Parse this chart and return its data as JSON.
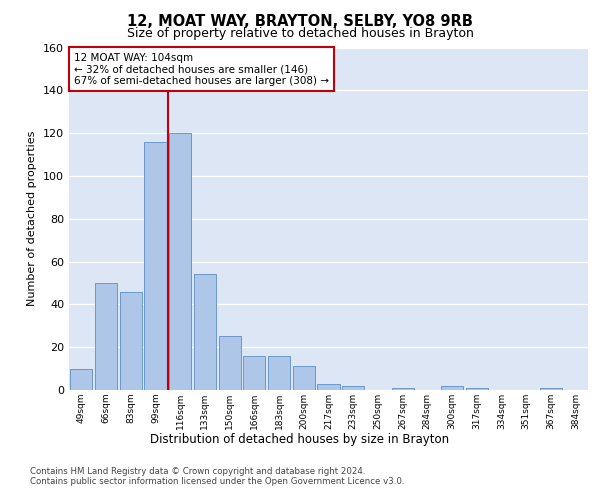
{
  "title1": "12, MOAT WAY, BRAYTON, SELBY, YO8 9RB",
  "title2": "Size of property relative to detached houses in Brayton",
  "xlabel": "Distribution of detached houses by size in Brayton",
  "ylabel": "Number of detached properties",
  "footer1": "Contains HM Land Registry data © Crown copyright and database right 2024.",
  "footer2": "Contains public sector information licensed under the Open Government Licence v3.0.",
  "annotation_line1": "12 MOAT WAY: 104sqm",
  "annotation_line2": "← 32% of detached houses are smaller (146)",
  "annotation_line3": "67% of semi-detached houses are larger (308) →",
  "property_size": 104,
  "categories": [
    "49sqm",
    "66sqm",
    "83sqm",
    "99sqm",
    "116sqm",
    "133sqm",
    "150sqm",
    "166sqm",
    "183sqm",
    "200sqm",
    "217sqm",
    "233sqm",
    "250sqm",
    "267sqm",
    "284sqm",
    "300sqm",
    "317sqm",
    "334sqm",
    "351sqm",
    "367sqm",
    "384sqm"
  ],
  "values": [
    10,
    50,
    46,
    116,
    120,
    54,
    25,
    16,
    16,
    11,
    3,
    2,
    0,
    1,
    0,
    2,
    1,
    0,
    0,
    1,
    0
  ],
  "bar_color": "#aec6e8",
  "bar_edge_color": "#5b8fc9",
  "highlight_color": "#c0000a",
  "plot_bg_color": "#dce6f5",
  "ylim": [
    0,
    160
  ],
  "yticks": [
    0,
    20,
    40,
    60,
    80,
    100,
    120,
    140,
    160
  ],
  "property_bin_index": 3,
  "red_line_x": 3.5
}
